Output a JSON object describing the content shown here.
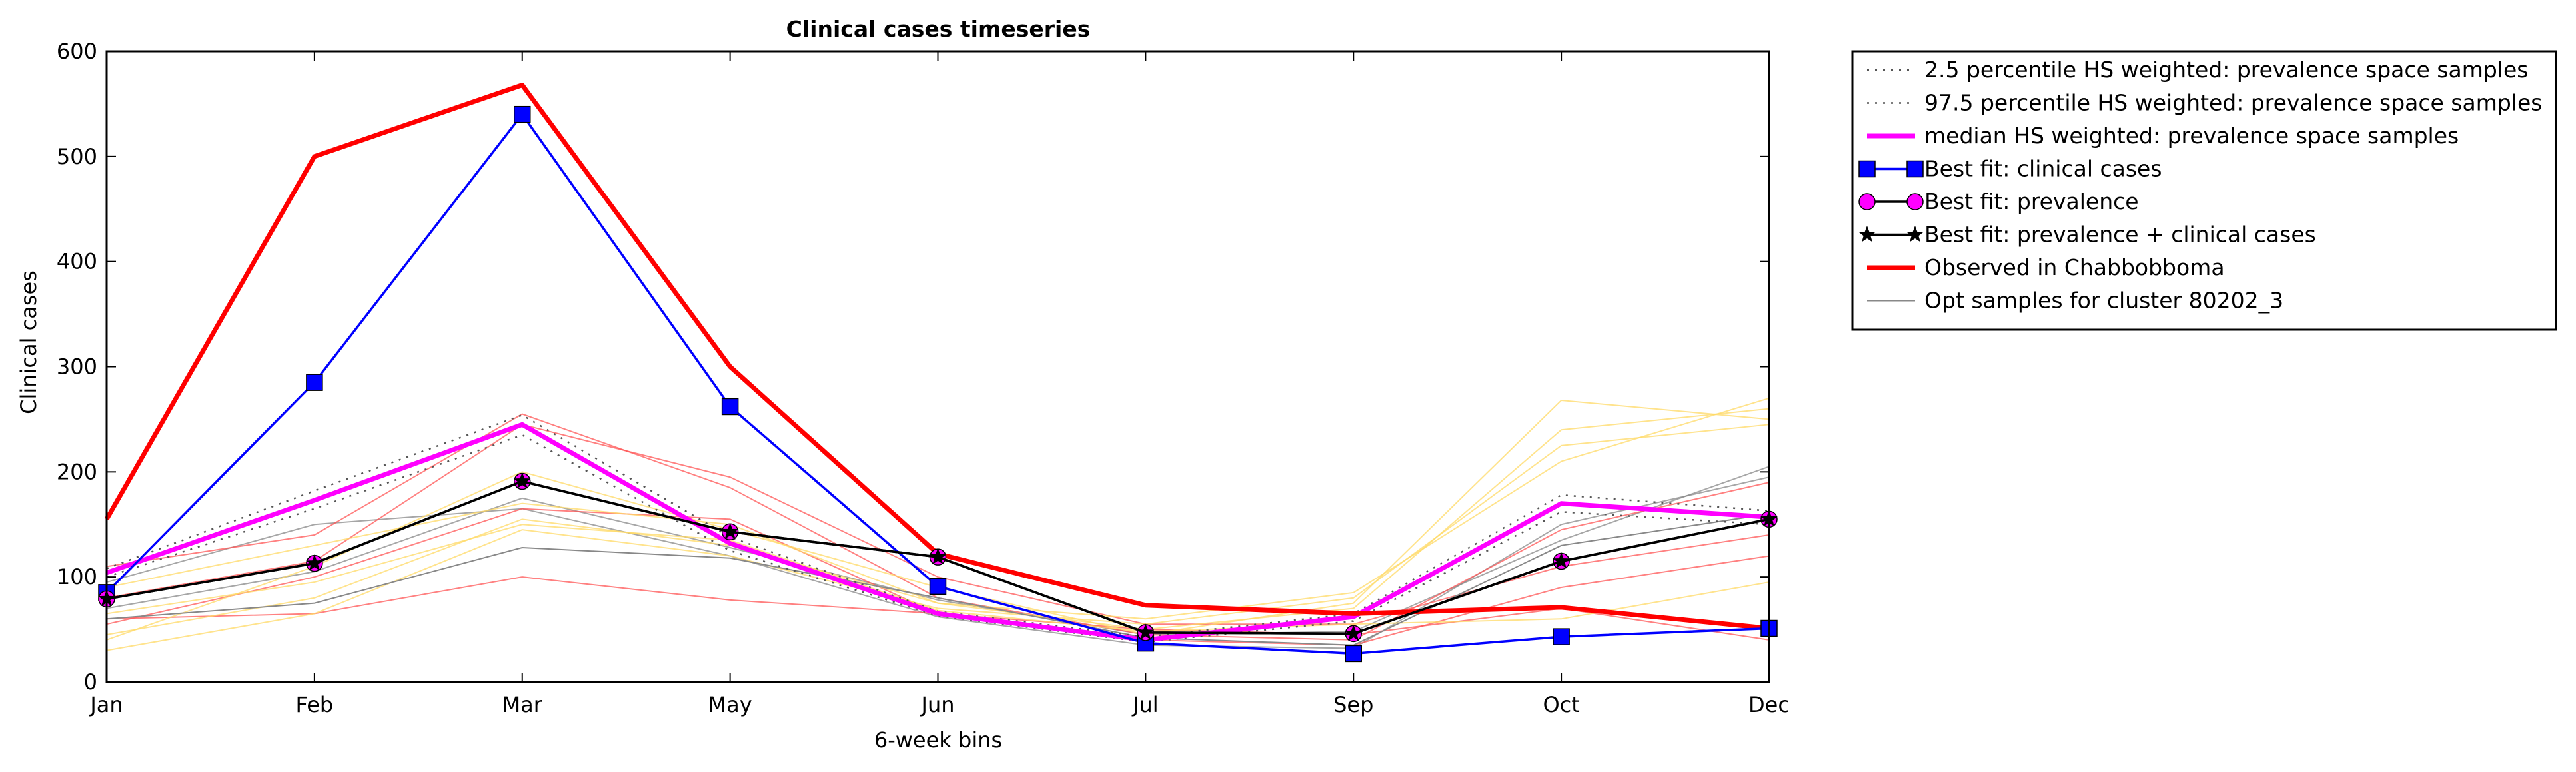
{
  "chart_data": {
    "type": "line",
    "title": "Clinical cases timeseries",
    "xlabel": "6-week bins",
    "ylabel": "Clinical cases",
    "categories": [
      "Jan",
      "Feb",
      "Mar",
      "May",
      "Jun",
      "Jul",
      "Sep",
      "Oct",
      "Dec"
    ],
    "ylim": [
      0,
      600
    ],
    "yticks": [
      0,
      100,
      200,
      300,
      400,
      500,
      600
    ],
    "grid": false,
    "legend_position": "outside-right-top",
    "series": [
      {
        "name": "2.5 percentile HS weighted: prevalence space samples",
        "color": "#555555",
        "style": "dotted",
        "values": [
          100,
          165,
          235,
          125,
          63,
          38,
          58,
          162,
          150
        ]
      },
      {
        "name": "97.5 percentile HS weighted: prevalence space samples",
        "color": "#555555",
        "style": "dotted",
        "values": [
          108,
          182,
          254,
          138,
          67,
          43,
          65,
          178,
          163
        ]
      },
      {
        "name": "median HS weighted: prevalence space samples",
        "color": "#ff00ff",
        "style": "solid-thick",
        "values": [
          104,
          173,
          245,
          132,
          65,
          40,
          62,
          170,
          157
        ]
      },
      {
        "name": "Best fit: clinical cases",
        "color": "#0000ff",
        "marker": "square",
        "values": [
          85,
          285,
          540,
          262,
          91,
          37,
          27,
          43,
          51
        ]
      },
      {
        "name": "Best fit: prevalence",
        "color": "#ff00ff",
        "marker": "circle",
        "values": [
          79,
          113,
          191,
          143,
          119,
          47,
          46,
          115,
          155
        ]
      },
      {
        "name": "Best fit: prevalence + clinical cases",
        "color": "#000000",
        "marker": "star",
        "values": [
          79,
          113,
          191,
          143,
          119,
          47,
          46,
          115,
          155
        ]
      },
      {
        "name": "Observed in Chabbobboma",
        "color": "#ff0000",
        "style": "solid-thick",
        "values": [
          155,
          500,
          568,
          300,
          122,
          73,
          65,
          71,
          51
        ]
      },
      {
        "name": "Opt samples for cluster 80202_3",
        "color": "#888888",
        "style": "thin",
        "values": [
          60,
          75,
          128,
          118,
          80,
          42,
          35,
          130,
          160
        ]
      }
    ],
    "background_samples": [
      {
        "color": "#888888",
        "values": [
          70,
          105,
          175,
          128,
          78,
          45,
          48,
          135,
          205
        ]
      },
      {
        "color": "#888888",
        "values": [
          95,
          150,
          165,
          120,
          62,
          35,
          32,
          150,
          195
        ]
      },
      {
        "color": "#ff5555",
        "values": [
          55,
          100,
          165,
          155,
          65,
          40,
          35,
          90,
          120
        ]
      },
      {
        "color": "#ff5555",
        "values": [
          60,
          65,
          100,
          78,
          65,
          50,
          45,
          70,
          40
        ]
      },
      {
        "color": "#ff5555",
        "values": [
          110,
          140,
          255,
          185,
          80,
          45,
          40,
          145,
          190
        ]
      },
      {
        "color": "#ff5555",
        "values": [
          80,
          115,
          245,
          195,
          100,
          55,
          55,
          110,
          140
        ]
      },
      {
        "color": "#ffd966",
        "values": [
          30,
          65,
          145,
          120,
          70,
          55,
          80,
          225,
          245
        ]
      },
      {
        "color": "#ffd966",
        "values": [
          45,
          80,
          155,
          130,
          75,
          50,
          70,
          240,
          260
        ]
      },
      {
        "color": "#ffd966",
        "values": [
          40,
          110,
          200,
          145,
          90,
          45,
          75,
          268,
          250
        ]
      },
      {
        "color": "#ffd966",
        "values": [
          90,
          130,
          170,
          150,
          75,
          60,
          85,
          210,
          270
        ]
      },
      {
        "color": "#ffd966",
        "values": [
          65,
          95,
          150,
          135,
          68,
          48,
          55,
          60,
          95
        ]
      }
    ]
  }
}
